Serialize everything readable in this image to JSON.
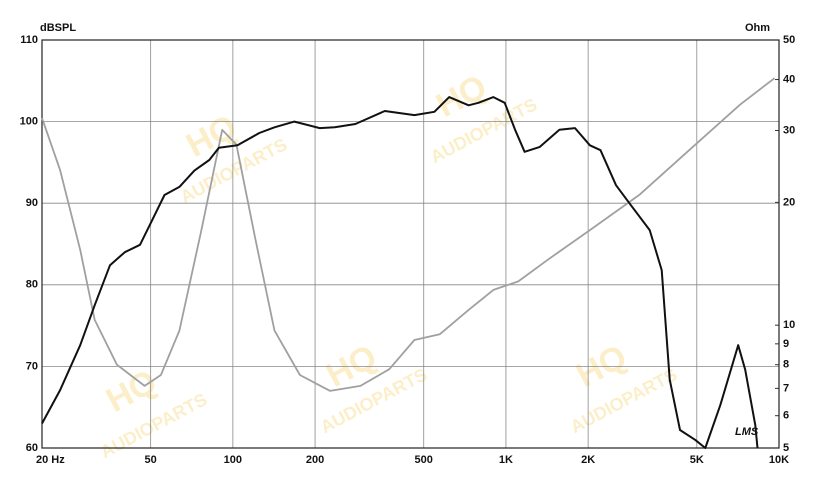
{
  "chart_data": {
    "type": "line",
    "ylabel": "dBSPL",
    "y2label": "Ohm",
    "annotation": "LMS",
    "watermark": [
      "HQ",
      "AUDIOPARTS"
    ],
    "xlog": true,
    "y2log": true,
    "grid": true,
    "xlim": [
      20,
      10000
    ],
    "xticks": [
      {
        "value": 20,
        "label": "20 Hz"
      },
      50,
      100,
      200,
      500,
      {
        "value": 1000,
        "label": "1K"
      },
      {
        "value": 2000,
        "label": "2K"
      },
      {
        "value": 5000,
        "label": "5K"
      },
      {
        "value": 10000,
        "label": "10K"
      }
    ],
    "ylim": [
      60,
      110
    ],
    "yticks": [
      60,
      70,
      80,
      90,
      100,
      110
    ],
    "y2lim": [
      5,
      50
    ],
    "y2ticks": [
      5,
      6,
      7,
      8,
      9,
      10,
      20,
      30,
      40,
      50
    ],
    "series": [
      {
        "color": "#111111",
        "x": [
          20,
          23.3,
          27.6,
          31.2,
          35.5,
          40.2,
          45.7,
          49.6,
          56.2,
          63.7,
          72.3,
          82,
          88.9,
          104,
          125,
          142,
          168,
          208,
          236,
          281,
          360,
          462,
          547,
          620,
          730,
          793,
          900,
          990,
          1080,
          1170,
          1330,
          1570,
          1790,
          2030,
          2220,
          2530,
          2860,
          3360,
          3720,
          3980,
          4340,
          4930,
          5370,
          6100,
          7090,
          7520,
          8190,
          8340
        ],
        "values": [
          63,
          67.1,
          72.6,
          77.5,
          82.4,
          84,
          84.9,
          87.3,
          91,
          92,
          94,
          95.3,
          96.8,
          97.1,
          98.6,
          99.3,
          100,
          99.2,
          99.3,
          99.7,
          101.3,
          100.8,
          101.2,
          103,
          102,
          102.3,
          103,
          102.3,
          99,
          96.3,
          96.9,
          99,
          99.2,
          97.1,
          96.5,
          92.2,
          89.8,
          86.7,
          81.8,
          68.4,
          62.2,
          61,
          60,
          65.3,
          72.6,
          69.6,
          62.8,
          60
        ]
      },
      {
        "color": "#a0a0a0",
        "axis": "y2",
        "x": [
          20,
          23.3,
          27.6,
          31.2,
          37.6,
          47.5,
          54.5,
          63.7,
          76.7,
          91.4,
          103,
          121,
          142,
          176,
          227,
          293,
          374,
          462,
          572,
          730,
          900,
          1110,
          1430,
          2030,
          3090,
          5150,
          7200,
          9630
        ],
        "values": [
          32.2,
          24,
          15.3,
          10.3,
          8,
          7.1,
          7.55,
          9.7,
          17.1,
          30.1,
          27.7,
          16.2,
          9.7,
          7.55,
          6.9,
          7.1,
          7.8,
          9.2,
          9.5,
          10.9,
          12.2,
          12.8,
          14.5,
          17.1,
          20.9,
          28.4,
          34.7,
          40.3
        ]
      }
    ]
  }
}
